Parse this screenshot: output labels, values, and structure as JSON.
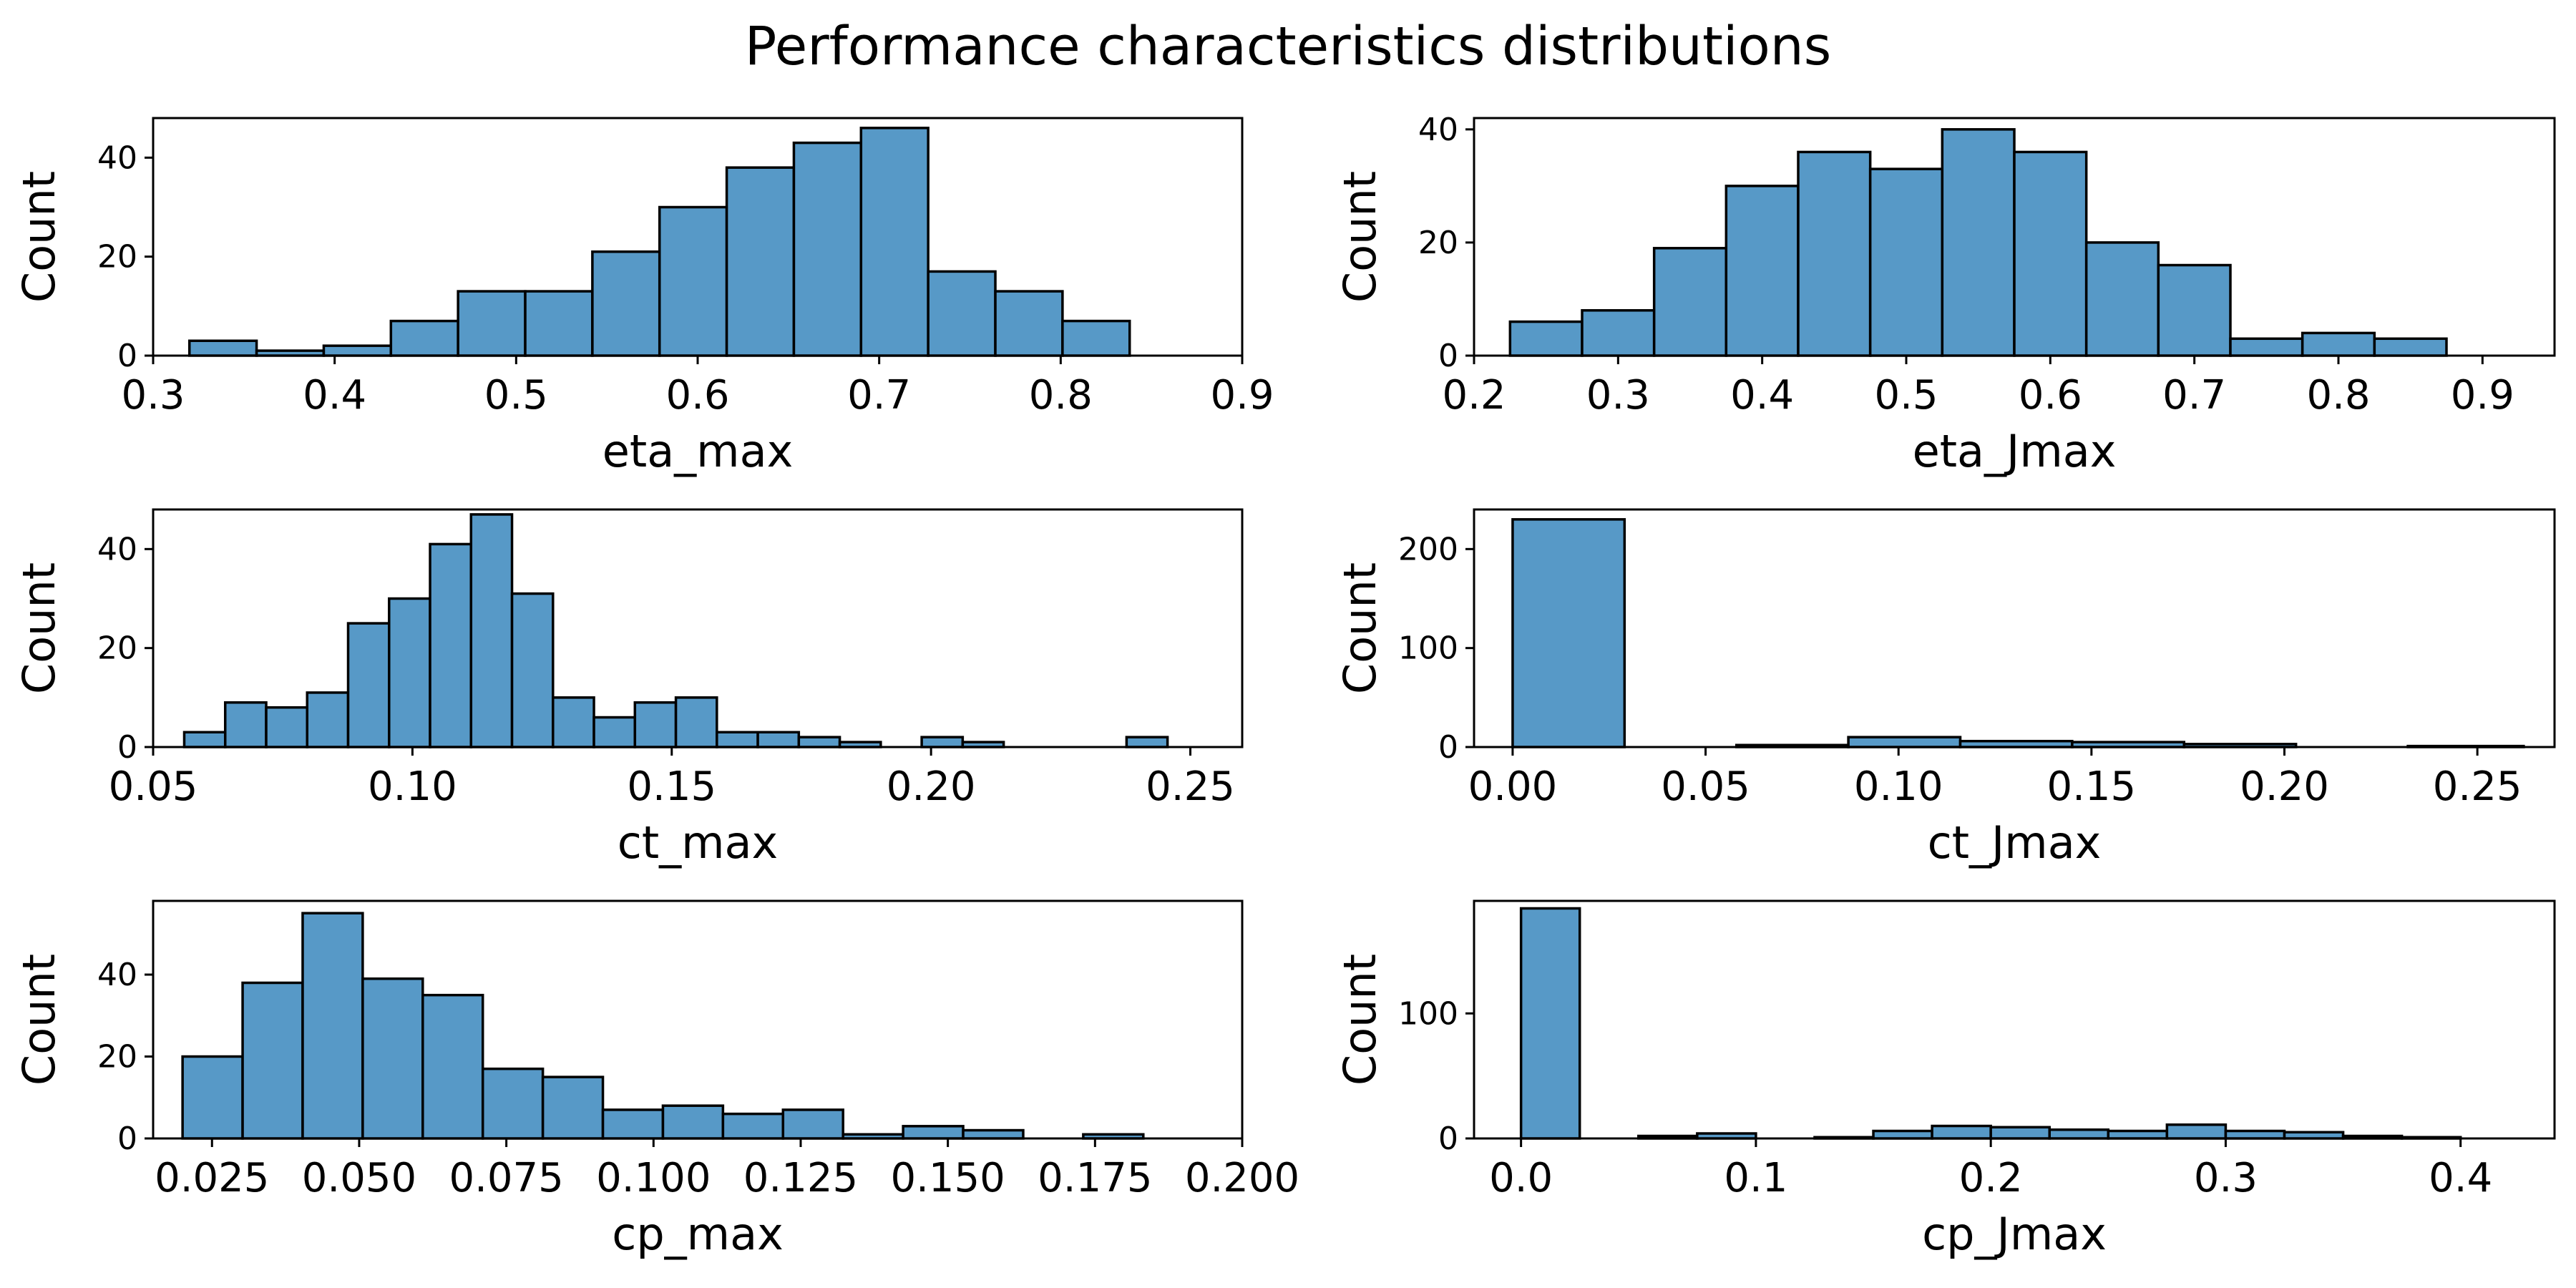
{
  "title": "Performance characteristics distributions",
  "colors": {
    "bar_fill": "#5799c7",
    "bar_edge": "#000000"
  },
  "chart_data": [
    {
      "type": "bar",
      "histogram": true,
      "xlabel": "eta_max",
      "ylabel": "Count",
      "xlim": [
        0.3,
        0.9
      ],
      "ylim": [
        0,
        48
      ],
      "xticks": [
        0.3,
        0.4,
        0.5,
        0.6,
        0.7,
        0.8,
        0.9
      ],
      "xtick_labels": [
        "0.3",
        "0.4",
        "0.5",
        "0.6",
        "0.7",
        "0.8",
        "0.9"
      ],
      "yticks": [
        0,
        20,
        40
      ],
      "ytick_labels": [
        "0",
        "20",
        "40"
      ],
      "bin_edges": [
        0.32,
        0.357,
        0.394,
        0.431,
        0.468,
        0.505,
        0.542,
        0.579,
        0.616,
        0.653,
        0.69,
        0.727,
        0.764,
        0.801,
        0.838,
        0.875
      ],
      "values": [
        3,
        1,
        2,
        7,
        13,
        13,
        21,
        30,
        38,
        43,
        46,
        17,
        13,
        7,
        0
      ]
    },
    {
      "type": "bar",
      "histogram": true,
      "xlabel": "eta_Jmax",
      "ylabel": "Count",
      "xlim": [
        0.2,
        0.95
      ],
      "ylim": [
        0,
        42
      ],
      "xticks": [
        0.2,
        0.3,
        0.4,
        0.5,
        0.6,
        0.7,
        0.8,
        0.9
      ],
      "xtick_labels": [
        "0.2",
        "0.3",
        "0.4",
        "0.5",
        "0.6",
        "0.7",
        "0.8",
        "0.9"
      ],
      "yticks": [
        0,
        20,
        40
      ],
      "ytick_labels": [
        "0",
        "20",
        "40"
      ],
      "bin_edges": [
        0.225,
        0.275,
        0.325,
        0.375,
        0.425,
        0.475,
        0.525,
        0.575,
        0.625,
        0.675,
        0.725,
        0.775,
        0.825,
        0.875,
        0.925
      ],
      "values": [
        6,
        8,
        19,
        30,
        36,
        33,
        40,
        36,
        20,
        16,
        3,
        4,
        3,
        0
      ]
    },
    {
      "type": "bar",
      "histogram": true,
      "xlabel": "ct_max",
      "ylabel": "Count",
      "xlim": [
        0.05,
        0.26
      ],
      "ylim": [
        0,
        48
      ],
      "xticks": [
        0.05,
        0.1,
        0.15,
        0.2,
        0.25
      ],
      "xtick_labels": [
        "0.05",
        "0.10",
        "0.15",
        "0.20",
        "0.25"
      ],
      "yticks": [
        0,
        20,
        40
      ],
      "ytick_labels": [
        "0",
        "20",
        "40"
      ],
      "bin_edges": [
        0.056,
        0.0639,
        0.0718,
        0.0797,
        0.0876,
        0.0955,
        0.1034,
        0.1113,
        0.1192,
        0.1271,
        0.135,
        0.1429,
        0.1508,
        0.1587,
        0.1666,
        0.1745,
        0.1824,
        0.1903,
        0.1982,
        0.2061,
        0.214,
        0.2219,
        0.2298,
        0.2377,
        0.2456,
        0.2535
      ],
      "values": [
        3,
        9,
        8,
        11,
        25,
        30,
        41,
        47,
        31,
        10,
        6,
        9,
        10,
        3,
        3,
        2,
        1,
        0,
        2,
        1,
        0,
        0,
        0,
        2,
        0
      ]
    },
    {
      "type": "bar",
      "histogram": true,
      "xlabel": "ct_Jmax",
      "ylabel": "Count",
      "xlim": [
        -0.01,
        0.27
      ],
      "ylim": [
        0,
        240
      ],
      "xticks": [
        0.0,
        0.05,
        0.1,
        0.15,
        0.2,
        0.25
      ],
      "xtick_labels": [
        "0.00",
        "0.05",
        "0.10",
        "0.15",
        "0.20",
        "0.25"
      ],
      "yticks": [
        0,
        100,
        200
      ],
      "ytick_labels": [
        "0",
        "100",
        "200"
      ],
      "bin_edges": [
        0.0,
        0.029,
        0.058,
        0.087,
        0.116,
        0.145,
        0.174,
        0.203,
        0.232,
        0.262
      ],
      "values": [
        230,
        0,
        2,
        10,
        6,
        5,
        3,
        0,
        1
      ]
    },
    {
      "type": "bar",
      "histogram": true,
      "xlabel": "cp_max",
      "ylabel": "Count",
      "xlim": [
        0.015,
        0.2
      ],
      "ylim": [
        0,
        58
      ],
      "xticks": [
        0.025,
        0.05,
        0.075,
        0.1,
        0.125,
        0.15,
        0.175,
        0.2
      ],
      "xtick_labels": [
        "0.025",
        "0.050",
        "0.075",
        "0.100",
        "0.125",
        "0.150",
        "0.175",
        "0.200"
      ],
      "yticks": [
        0,
        20,
        40
      ],
      "ytick_labels": [
        "0",
        "20",
        "40"
      ],
      "bin_edges": [
        0.02,
        0.0302,
        0.0404,
        0.0506,
        0.0608,
        0.071,
        0.0812,
        0.0914,
        0.1016,
        0.1118,
        0.122,
        0.1322,
        0.1424,
        0.1526,
        0.1628,
        0.173,
        0.1832,
        0.1934
      ],
      "values": [
        20,
        38,
        55,
        39,
        35,
        17,
        15,
        7,
        8,
        6,
        7,
        1,
        3,
        2,
        0,
        1,
        0
      ]
    },
    {
      "type": "bar",
      "histogram": true,
      "xlabel": "cp_Jmax",
      "ylabel": "Count",
      "xlim": [
        -0.02,
        0.44
      ],
      "ylim": [
        0,
        190
      ],
      "xticks": [
        0.0,
        0.1,
        0.2,
        0.3,
        0.4
      ],
      "xtick_labels": [
        "0.0",
        "0.1",
        "0.2",
        "0.3",
        "0.4"
      ],
      "yticks": [
        0,
        100
      ],
      "ytick_labels": [
        "0",
        "100"
      ],
      "bin_edges": [
        0.0,
        0.025,
        0.05,
        0.075,
        0.1,
        0.125,
        0.15,
        0.175,
        0.2,
        0.225,
        0.25,
        0.275,
        0.3,
        0.325,
        0.35,
        0.375,
        0.4,
        0.425
      ],
      "values": [
        184,
        0,
        2,
        4,
        0,
        1,
        6,
        10,
        9,
        7,
        6,
        11,
        6,
        5,
        2,
        1,
        0
      ]
    }
  ]
}
